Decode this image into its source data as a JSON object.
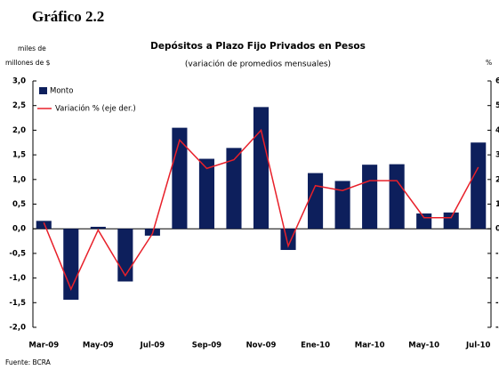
{
  "heading": "Gráfico 2.2",
  "source": "Fuente: BCRA",
  "chart_data": {
    "type": "bar_line",
    "title": "Depósitos a Plazo Fijo Privados en Pesos",
    "subtitle": "(variación de promedios mensuales)",
    "y_label": [
      "miles de",
      "millones de $"
    ],
    "y2_label": "%",
    "categories": [
      "Mar-09",
      null,
      "May-09",
      null,
      "Jul-09",
      null,
      "Sep-09",
      null,
      "Nov-09",
      null,
      "Ene-10",
      null,
      "Mar-10",
      null,
      "May-10",
      null,
      "Jul-10"
    ],
    "series": [
      {
        "name": "Monto",
        "type": "bar",
        "color": "#0d1f5c",
        "values": [
          0.16,
          -1.44,
          0.04,
          -1.07,
          -0.14,
          2.05,
          1.42,
          1.64,
          2.47,
          -0.43,
          1.13,
          0.97,
          1.3,
          1.31,
          0.31,
          0.33,
          1.75
        ]
      },
      {
        "name": "Variación % (eje der.)",
        "type": "line",
        "axis": "y2",
        "color": "#e8202a",
        "values": [
          0.25,
          -2.45,
          -0.05,
          -1.9,
          -0.2,
          3.6,
          2.45,
          2.8,
          4.0,
          -0.7,
          1.75,
          1.55,
          1.95,
          1.95,
          0.45,
          0.45,
          2.5
        ]
      }
    ],
    "ylim": [
      -2,
      3
    ],
    "yticks": [
      {
        "value": 3,
        "label": "3,0"
      },
      {
        "value": 2.5,
        "label": "2,5"
      },
      {
        "value": 2,
        "label": "2,0"
      },
      {
        "value": 1.5,
        "label": "1,5"
      },
      {
        "value": 1,
        "label": "1,0"
      },
      {
        "value": 0.5,
        "label": "0,5"
      },
      {
        "value": 0,
        "label": "0,0"
      },
      {
        "value": -0.5,
        "label": "-0,5"
      },
      {
        "value": -1,
        "label": "-1,0"
      },
      {
        "value": -1.5,
        "label": "-1,5"
      },
      {
        "value": -2,
        "label": "-2,0"
      }
    ],
    "y2lim": [
      -4,
      6
    ],
    "y2ticks": [
      6,
      5,
      4,
      3,
      2,
      1,
      0,
      -1,
      -2,
      -3,
      -4
    ],
    "legend": "upper left"
  }
}
